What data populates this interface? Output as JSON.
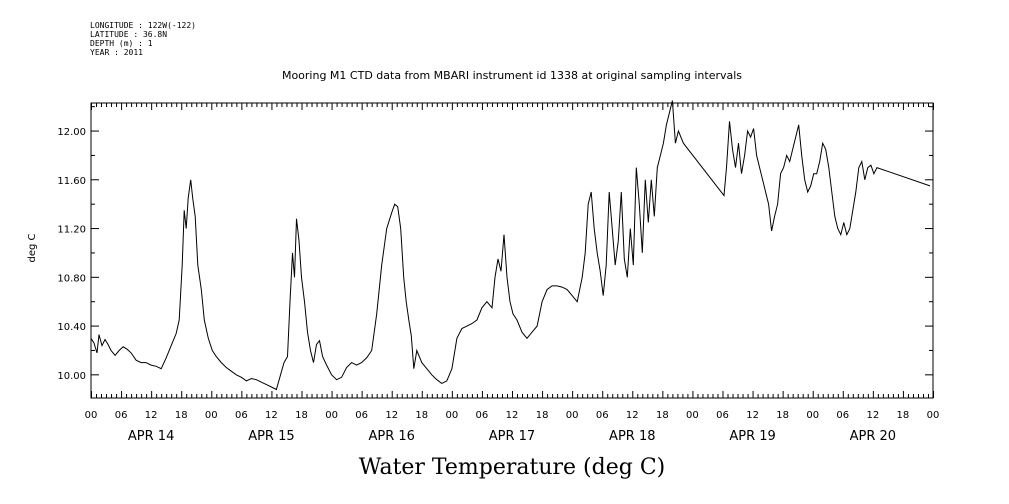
{
  "meta": {
    "longitude": "LONGITUDE : 122W(-122)",
    "latitude": "LATITUDE : 36.8N",
    "depth": "DEPTH (m) : 1",
    "year": "YEAR : 2011"
  },
  "chart_data": {
    "type": "line",
    "title": "Mooring M1 CTD data from MBARI instrument id 1338 at original sampling intervals",
    "xlabel": "Water Temperature (deg C)",
    "ylabel": "deg C",
    "x_unit": "hours since APR 14 00:00",
    "xlim": [
      0,
      168
    ],
    "ylim": [
      9.81,
      12.23
    ],
    "yticks": [
      "10.00",
      "10.40",
      "10.80",
      "11.20",
      "11.60",
      "12.00"
    ],
    "xtick_labels": [
      "00",
      "06",
      "12",
      "18",
      "00",
      "06",
      "12",
      "18",
      "00",
      "06",
      "12",
      "18",
      "00",
      "06",
      "12",
      "18",
      "00",
      "06",
      "12",
      "18",
      "00",
      "06",
      "12",
      "18",
      "00",
      "06",
      "12",
      "18",
      "00"
    ],
    "days": [
      "APR 14",
      "APR 15",
      "APR 16",
      "APR 17",
      "APR 18",
      "APR 19",
      "APR 20"
    ],
    "grid": false,
    "series": [
      {
        "color": "#000000",
        "points": [
          [
            0,
            10.3
          ],
          [
            0.6,
            10.26
          ],
          [
            1.2,
            10.18
          ],
          [
            1.6,
            10.33
          ],
          [
            2.2,
            10.24
          ],
          [
            2.8,
            10.29
          ],
          [
            3.4,
            10.25
          ],
          [
            4,
            10.2
          ],
          [
            4.8,
            10.16
          ],
          [
            5.6,
            10.2
          ],
          [
            6.4,
            10.23
          ],
          [
            7.2,
            10.21
          ],
          [
            8,
            10.18
          ],
          [
            9,
            10.12
          ],
          [
            10,
            10.1
          ],
          [
            11,
            10.1
          ],
          [
            12,
            10.08
          ],
          [
            13,
            10.07
          ],
          [
            14,
            10.05
          ],
          [
            15,
            10.14
          ],
          [
            16,
            10.24
          ],
          [
            17,
            10.34
          ],
          [
            17.6,
            10.45
          ],
          [
            18.2,
            10.9
          ],
          [
            18.6,
            11.35
          ],
          [
            19,
            11.2
          ],
          [
            19.4,
            11.45
          ],
          [
            19.9,
            11.6
          ],
          [
            20.3,
            11.45
          ],
          [
            20.8,
            11.3
          ],
          [
            21.3,
            10.9
          ],
          [
            22,
            10.7
          ],
          [
            22.6,
            10.45
          ],
          [
            23.4,
            10.3
          ],
          [
            24.2,
            10.2
          ],
          [
            25,
            10.15
          ],
          [
            26,
            10.1
          ],
          [
            27,
            10.06
          ],
          [
            28,
            10.03
          ],
          [
            29,
            10.0
          ],
          [
            30,
            9.98
          ],
          [
            31,
            9.95
          ],
          [
            32,
            9.97
          ],
          [
            33,
            9.96
          ],
          [
            34,
            9.94
          ],
          [
            35,
            9.92
          ],
          [
            36,
            9.9
          ],
          [
            37,
            9.88
          ],
          [
            38.5,
            10.1
          ],
          [
            39.2,
            10.15
          ],
          [
            39.7,
            10.6
          ],
          [
            40.2,
            11.0
          ],
          [
            40.6,
            10.8
          ],
          [
            41,
            11.28
          ],
          [
            41.5,
            11.1
          ],
          [
            42,
            10.8
          ],
          [
            42.6,
            10.6
          ],
          [
            43.2,
            10.35
          ],
          [
            43.8,
            10.2
          ],
          [
            44.4,
            10.1
          ],
          [
            45,
            10.25
          ],
          [
            45.6,
            10.28
          ],
          [
            46.2,
            10.15
          ],
          [
            47,
            10.08
          ],
          [
            48,
            10.0
          ],
          [
            49,
            9.96
          ],
          [
            50,
            9.98
          ],
          [
            51,
            10.06
          ],
          [
            52,
            10.1
          ],
          [
            53,
            10.08
          ],
          [
            54,
            10.1
          ],
          [
            55,
            10.14
          ],
          [
            56,
            10.2
          ],
          [
            57,
            10.5
          ],
          [
            58,
            10.9
          ],
          [
            59,
            11.2
          ],
          [
            60,
            11.33
          ],
          [
            60.6,
            11.4
          ],
          [
            61.2,
            11.38
          ],
          [
            61.8,
            11.2
          ],
          [
            62.4,
            10.8
          ],
          [
            62.9,
            10.6
          ],
          [
            63.4,
            10.45
          ],
          [
            63.9,
            10.32
          ],
          [
            64.4,
            10.05
          ],
          [
            65,
            10.2
          ],
          [
            66,
            10.1
          ],
          [
            67,
            10.05
          ],
          [
            68,
            10.0
          ],
          [
            69,
            9.96
          ],
          [
            70,
            9.93
          ],
          [
            71,
            9.95
          ],
          [
            72,
            10.05
          ],
          [
            73,
            10.3
          ],
          [
            74,
            10.38
          ],
          [
            75,
            10.4
          ],
          [
            76,
            10.42
          ],
          [
            77,
            10.45
          ],
          [
            78,
            10.55
          ],
          [
            79,
            10.6
          ],
          [
            80,
            10.55
          ],
          [
            80.6,
            10.8
          ],
          [
            81.2,
            10.95
          ],
          [
            81.8,
            10.85
          ],
          [
            82.4,
            11.15
          ],
          [
            83,
            10.8
          ],
          [
            83.6,
            10.6
          ],
          [
            84.2,
            10.5
          ],
          [
            85,
            10.45
          ],
          [
            86,
            10.35
          ],
          [
            87,
            10.3
          ],
          [
            88,
            10.35
          ],
          [
            89,
            10.4
          ],
          [
            90,
            10.6
          ],
          [
            91,
            10.7
          ],
          [
            92,
            10.73
          ],
          [
            93,
            10.73
          ],
          [
            94,
            10.72
          ],
          [
            95,
            10.7
          ],
          [
            96,
            10.65
          ],
          [
            97,
            10.6
          ],
          [
            98,
            10.8
          ],
          [
            98.6,
            11.0
          ],
          [
            99.2,
            11.4
          ],
          [
            99.8,
            11.5
          ],
          [
            100.4,
            11.2
          ],
          [
            101,
            11.0
          ],
          [
            101.6,
            10.85
          ],
          [
            102.2,
            10.65
          ],
          [
            102.8,
            10.9
          ],
          [
            103.4,
            11.5
          ],
          [
            104,
            11.2
          ],
          [
            104.6,
            10.9
          ],
          [
            105.2,
            11.1
          ],
          [
            105.8,
            11.5
          ],
          [
            106.4,
            10.95
          ],
          [
            107,
            10.8
          ],
          [
            107.6,
            11.2
          ],
          [
            108.2,
            10.9
          ],
          [
            108.8,
            11.7
          ],
          [
            109.4,
            11.4
          ],
          [
            110,
            11.0
          ],
          [
            110.6,
            11.6
          ],
          [
            111.2,
            11.25
          ],
          [
            111.8,
            11.6
          ],
          [
            112.4,
            11.3
          ],
          [
            113,
            11.7
          ],
          [
            113.6,
            11.8
          ],
          [
            114.2,
            11.9
          ],
          [
            114.8,
            12.05
          ],
          [
            115.4,
            12.15
          ],
          [
            116,
            12.25
          ],
          [
            116.6,
            11.9
          ],
          [
            117.2,
            12.0
          ],
          [
            118.2,
            11.9
          ],
          [
            126.3,
            11.47
          ],
          [
            126.8,
            11.7
          ],
          [
            127.4,
            12.08
          ],
          [
            128,
            11.85
          ],
          [
            128.6,
            11.7
          ],
          [
            129.2,
            11.9
          ],
          [
            129.8,
            11.65
          ],
          [
            130.4,
            11.8
          ],
          [
            131,
            12.0
          ],
          [
            131.6,
            11.95
          ],
          [
            132.2,
            12.02
          ],
          [
            132.8,
            11.8
          ],
          [
            133.4,
            11.7
          ],
          [
            134,
            11.6
          ],
          [
            134.6,
            11.5
          ],
          [
            135.2,
            11.4
          ],
          [
            135.8,
            11.18
          ],
          [
            136.4,
            11.3
          ],
          [
            137,
            11.4
          ],
          [
            137.6,
            11.65
          ],
          [
            138.2,
            11.7
          ],
          [
            138.8,
            11.8
          ],
          [
            139.4,
            11.75
          ],
          [
            140,
            11.85
          ],
          [
            140.6,
            11.95
          ],
          [
            141.2,
            12.05
          ],
          [
            141.8,
            11.8
          ],
          [
            142.4,
            11.6
          ],
          [
            143,
            11.5
          ],
          [
            143.6,
            11.55
          ],
          [
            144.2,
            11.65
          ],
          [
            144.8,
            11.65
          ],
          [
            145.4,
            11.75
          ],
          [
            146,
            11.9
          ],
          [
            146.6,
            11.85
          ],
          [
            147.2,
            11.7
          ],
          [
            147.8,
            11.5
          ],
          [
            148.4,
            11.3
          ],
          [
            149,
            11.2
          ],
          [
            149.6,
            11.15
          ],
          [
            150.2,
            11.25
          ],
          [
            150.8,
            11.15
          ],
          [
            151.4,
            11.2
          ],
          [
            152,
            11.35
          ],
          [
            152.6,
            11.5
          ],
          [
            153.2,
            11.7
          ],
          [
            153.8,
            11.75
          ],
          [
            154.4,
            11.6
          ],
          [
            155,
            11.7
          ],
          [
            155.6,
            11.72
          ],
          [
            156.2,
            11.65
          ],
          [
            156.8,
            11.7
          ],
          [
            167.4,
            11.55
          ]
        ]
      }
    ]
  }
}
